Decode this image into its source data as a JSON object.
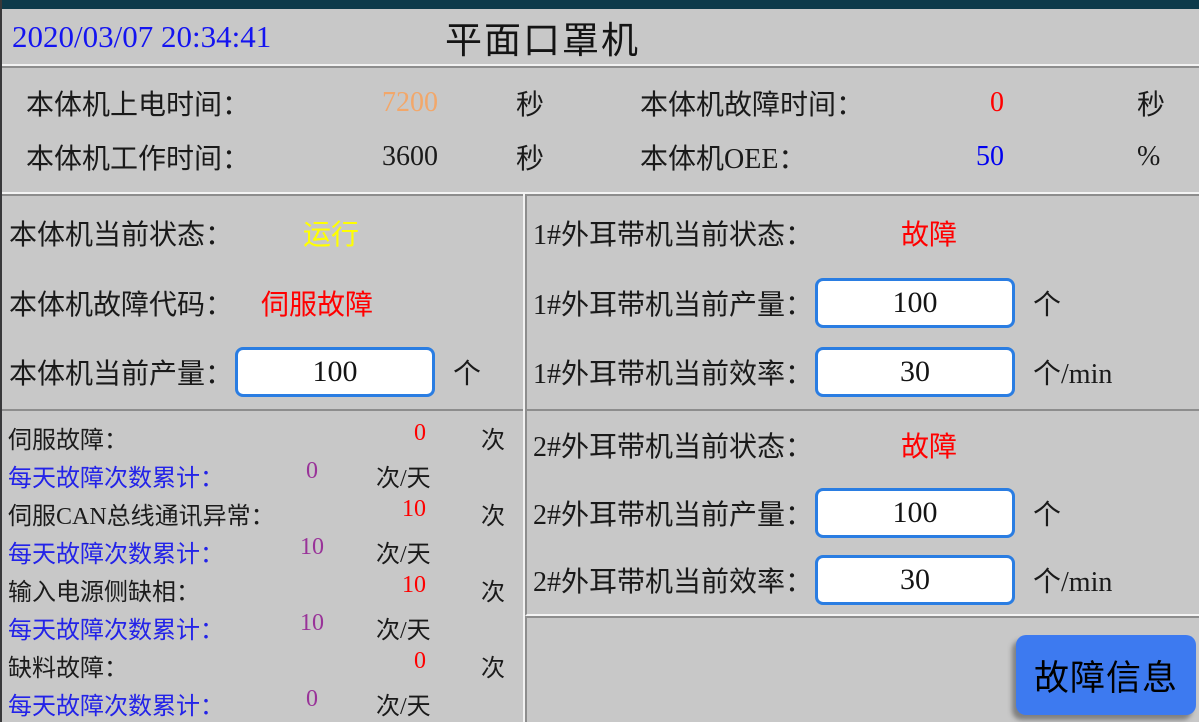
{
  "colors": {
    "topbar_teal": "#0d3a4a",
    "background_gray": "#c8c8c8",
    "datetime_blue": "#1414f0",
    "power_on_orange": "#f2a76a",
    "fault_red": "#ff0000",
    "oee_blue": "#0000f0",
    "running_yellow": "#ffff00",
    "daily_label_blue": "#2323e8",
    "daily_value_purple": "#993399",
    "input_border_blue": "#2a7de2",
    "button_blue": "#3d7af0"
  },
  "header": {
    "datetime": "2020/03/07 20:34:41",
    "title": "平面口罩机"
  },
  "info": {
    "power_on": {
      "label": "本体机上电时间：",
      "value": "7200",
      "unit": "秒"
    },
    "fault_time": {
      "label": "本体机故障时间：",
      "value": "0",
      "unit": "秒"
    },
    "work_time": {
      "label": "本体机工作时间：",
      "value": "3600",
      "unit": "秒"
    },
    "oee": {
      "label": "本体机OEE：",
      "value": "50",
      "unit": "%"
    }
  },
  "machine": {
    "state_label": "本体机当前状态：",
    "state": "运行",
    "fault_label": "本体机故障代码：",
    "fault_code": "伺服故障",
    "output_label": "本体机当前产量：",
    "output_value": "100",
    "output_unit": "个"
  },
  "unit1": {
    "state_label": "1#外耳带机当前状态：",
    "state": "故障",
    "output_label": "1#外耳带机当前产量：",
    "output_value": "100",
    "output_unit": "个",
    "rate_label": "1#外耳带机当前效率：",
    "rate_value": "30",
    "rate_unit": "个/min"
  },
  "unit2": {
    "state_label": "2#外耳带机当前状态：",
    "state": "故障",
    "output_label": "2#外耳带机当前产量：",
    "output_value": "100",
    "output_unit": "个",
    "rate_label": "2#外耳带机当前效率：",
    "rate_value": "30",
    "rate_unit": "个/min"
  },
  "faults": {
    "rows": [
      {
        "label": "伺服故障：",
        "value": "0",
        "unit": "次"
      },
      {
        "label": "每天故障次数累计：",
        "value": "0",
        "unit": "次/天"
      },
      {
        "label": "伺服CAN总线通讯异常：",
        "value": "10",
        "unit": "次"
      },
      {
        "label": "每天故障次数累计：",
        "value": "10",
        "unit": "次/天"
      },
      {
        "label": "输入电源侧缺相：",
        "value": "10",
        "unit": "次"
      },
      {
        "label": "每天故障次数累计：",
        "value": "10",
        "unit": "次/天"
      },
      {
        "label": "缺料故障：",
        "value": "0",
        "unit": "次"
      },
      {
        "label": "每天故障次数累计：",
        "value": "0",
        "unit": "次/天"
      }
    ]
  },
  "button": {
    "label": "故障信息"
  }
}
